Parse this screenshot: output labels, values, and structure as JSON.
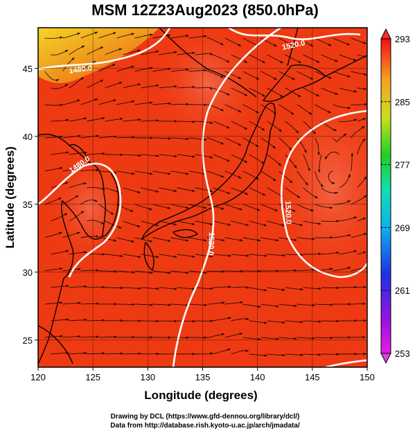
{
  "title": "MSM 12Z23Aug2023 (850.0hPa)",
  "x_axis": {
    "label": "Longitude (degrees)",
    "min": 120,
    "max": 150,
    "ticks": [
      "120",
      "125",
      "130",
      "135",
      "140",
      "145",
      "150"
    ]
  },
  "y_axis": {
    "label": "Latitude  (degrees)",
    "min": 23,
    "max": 48,
    "ticks": [
      "25",
      "30",
      "35",
      "40",
      "45"
    ]
  },
  "colorbar": {
    "ticks": [
      "293",
      "285",
      "277",
      "269",
      "261",
      "253"
    ],
    "min": 253,
    "max": 293
  },
  "contour_labels": [
    "1480.0",
    "1480.0",
    "1520.0",
    "1520.0",
    "1520.0"
  ],
  "credits": [
    "Drawing by DCL (https://www.gfd-dennou.org/library/dcl/)",
    "Data from http://database.rish.kyoto-u.ac.jp/arch/jmadata/"
  ],
  "colors": {
    "field_main": "#ee3a12",
    "field_warm": "#f25a3a",
    "field_cool": "#f6c81e",
    "contour": "#ffffff",
    "coast": "#000000"
  }
}
